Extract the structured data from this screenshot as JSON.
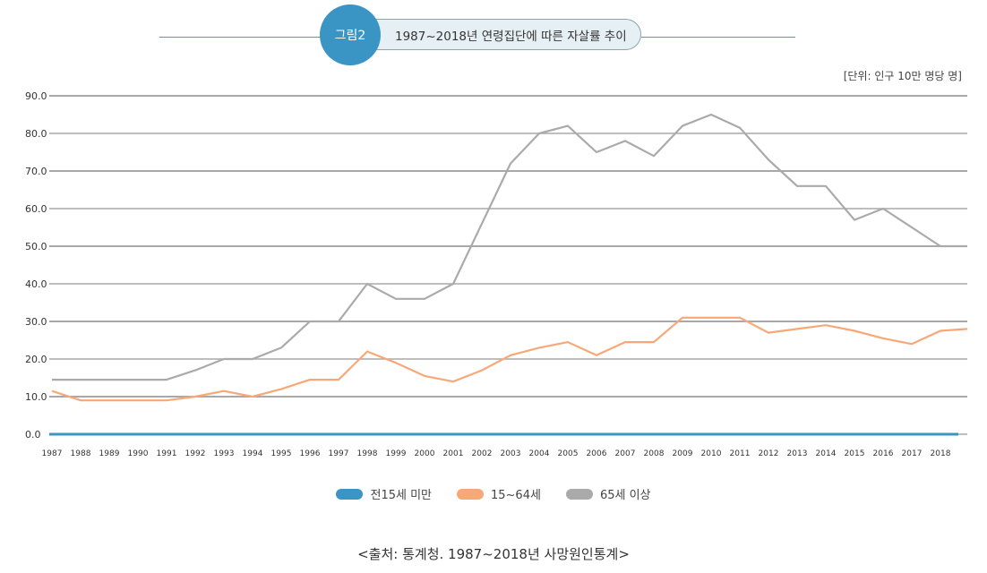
{
  "header": {
    "badge": "그림2",
    "title": "1987~2018년 연령집단에 따른 자살률 추이",
    "unit": "[단위: 인구 10만 명당 명]"
  },
  "source": "<출처: 통계청. 1987~2018년 사망원인통계>",
  "chart_data": {
    "type": "line",
    "title": "1987~2018년 연령집단에 따른 자살률 추이",
    "ylim": [
      0,
      90
    ],
    "yticks": [
      "0.0",
      "10.0",
      "20.0",
      "30.0",
      "40.0",
      "50.0",
      "60.0",
      "70.0",
      "80.0",
      "90.0"
    ],
    "grid": true,
    "legend": "bottom",
    "categories": [
      "1987",
      "1988",
      "1989",
      "1990",
      "1991",
      "1992",
      "1993",
      "1994",
      "1995",
      "1996",
      "1997",
      "1998",
      "1999",
      "2000",
      "2001",
      "2002",
      "2003",
      "2004",
      "2005",
      "2006",
      "2007",
      "2008",
      "2009",
      "2010",
      "2011",
      "2012",
      "2013",
      "2014",
      "2015",
      "2016",
      "2017",
      "2018"
    ],
    "series": [
      {
        "name": "전15세 미만",
        "color": "#3a95c4",
        "values": [
          0,
          0,
          0,
          0,
          0,
          0,
          0,
          0,
          0,
          0,
          0,
          0,
          0,
          0,
          0,
          0,
          0,
          0,
          0,
          0,
          0,
          0,
          0,
          0,
          0,
          0,
          0,
          0,
          0,
          0,
          0,
          0
        ]
      },
      {
        "name": "15~64세",
        "color": "#f7a878",
        "values": [
          11.5,
          9,
          9,
          9,
          9,
          10,
          11.5,
          10,
          12,
          14.5,
          14.5,
          22,
          19,
          15.5,
          14,
          17,
          21,
          23,
          24.5,
          21,
          24.5,
          24.5,
          31,
          31,
          31,
          27,
          28,
          29,
          27.5,
          25.5,
          24,
          27.5
        ]
      },
      {
        "name": "65세 이상",
        "color": "#aaaaaa",
        "values": [
          14.5,
          14.5,
          14.5,
          14.5,
          14.5,
          17,
          20,
          20,
          23,
          30,
          30,
          40,
          36,
          36,
          40,
          56,
          72,
          80,
          82,
          75,
          78,
          74,
          82,
          85,
          81.5,
          73,
          66,
          66,
          57,
          60,
          55,
          50
        ]
      }
    ]
  }
}
